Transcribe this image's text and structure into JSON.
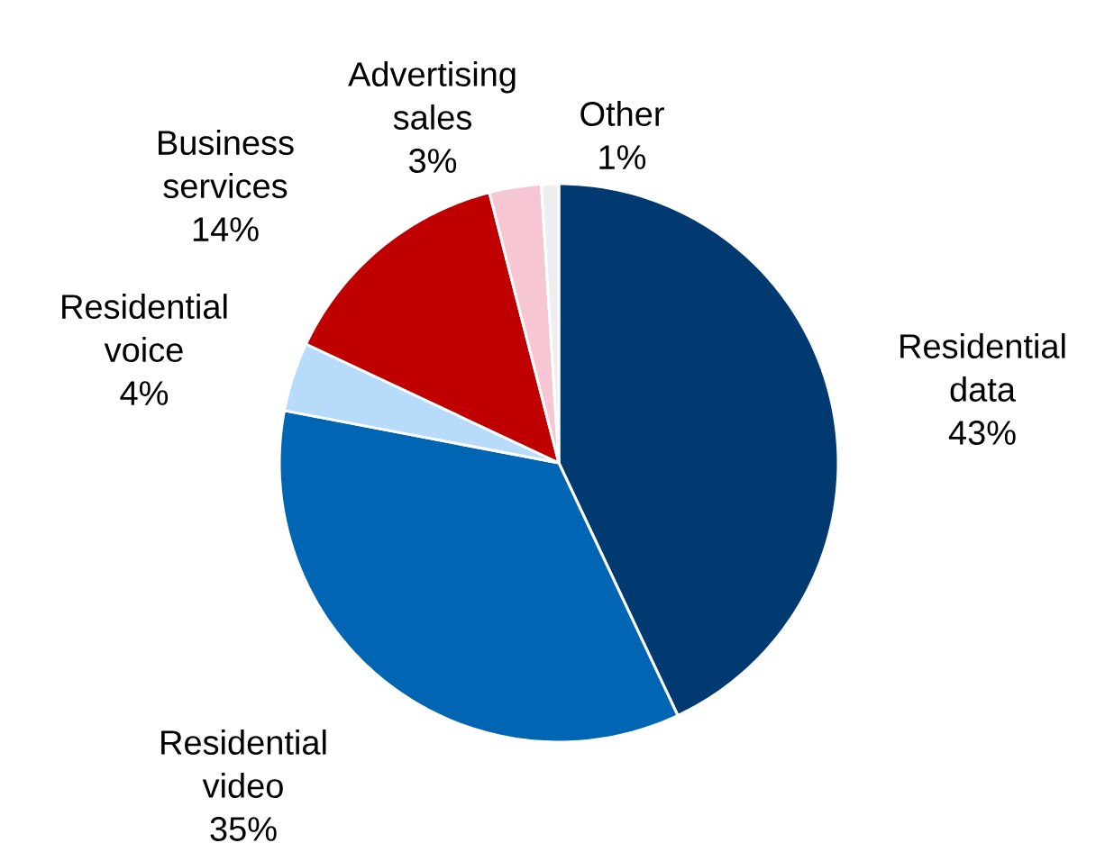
{
  "chart_data": {
    "type": "pie",
    "categories": [
      "Residential data",
      "Residential video",
      "Residential voice",
      "Business services",
      "Advertising sales",
      "Other"
    ],
    "values": [
      43,
      35,
      4,
      14,
      3,
      1
    ],
    "value_labels": [
      "43%",
      "35%",
      "4%",
      "14%",
      "3%",
      "1%"
    ],
    "colors": [
      "#003a70",
      "#0066b3",
      "#b7dcfb",
      "#c00000",
      "#f7c6d3",
      "#eeeeee"
    ]
  }
}
